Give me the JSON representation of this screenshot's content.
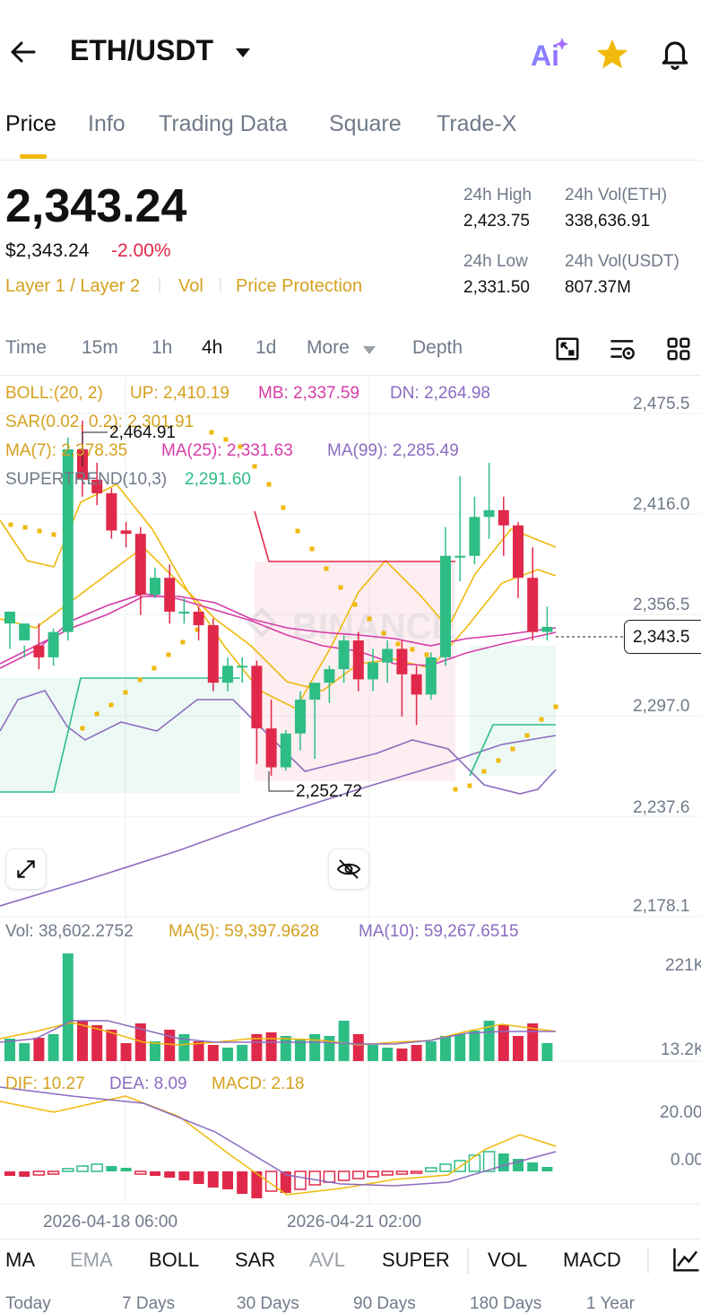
{
  "header": {
    "title": "ETH/USDT"
  },
  "tabs": [
    "Price",
    "Info",
    "Trading Data",
    "Square",
    "Trade-X"
  ],
  "price": {
    "last": "2,343.24",
    "fiat": "$2,343.24",
    "change": "-2.00%",
    "tags": [
      "Layer 1 / Layer 2",
      "Vol",
      "Price Protection"
    ]
  },
  "stats": {
    "high_label": "24h High",
    "high": "2,423.75",
    "vol_eth_label": "24h Vol(ETH)",
    "vol_eth": "338,636.91",
    "low_label": "24h Low",
    "low": "2,331.50",
    "vol_usdt_label": "24h Vol(USDT)",
    "vol_usdt": "807.37M"
  },
  "timeframes": [
    "Time",
    "15m",
    "1h",
    "4h",
    "1d",
    "More",
    "Depth"
  ],
  "active_timeframe": "4h",
  "legend": {
    "boll": "BOLL:(20, 2)",
    "up": "UP: 2,410.19",
    "mb": "MB: 2,337.59",
    "dn": "DN: 2,264.98",
    "sar": "SAR(0.02, 0.2): 2,301.91",
    "ma7": "MA(7): 2,378.35",
    "ma25": "MA(25): 2,331.63",
    "ma99": "MA(99): 2,285.49",
    "supertrend": "SUPERTREND(10,3)",
    "supertrend_val": "2,291.60"
  },
  "annotations": {
    "high": "2,464.91",
    "low": "2,252.72",
    "current": "2,343.5"
  },
  "vol_legend": {
    "vol": "Vol: 38,602.2752",
    "ma5": "MA(5): 59,397.9628",
    "ma10": "MA(10): 59,267.6515"
  },
  "macd_legend": {
    "dif": "DIF: 10.27",
    "dea": "DEA: 8.09",
    "macd": "MACD: 2.18"
  },
  "axis_labels": {
    "price": [
      "2,475.5",
      "2,416.0",
      "2,356.5",
      "2,297.0",
      "2,237.6",
      "2,178.1"
    ],
    "vol": [
      "221K",
      "13.2K"
    ],
    "macd": [
      "20.00",
      "0.00"
    ]
  },
  "dates": [
    "2026-04-18 06:00",
    "2026-04-21 02:00"
  ],
  "indicators": [
    "MA",
    "EMA",
    "BOLL",
    "SAR",
    "AVL",
    "SUPER",
    "VOL",
    "MACD"
  ],
  "ranges": [
    "Today",
    "7 Days",
    "30 Days",
    "90 Days",
    "180 Days",
    "1 Year"
  ],
  "watermark": "BINANCE",
  "colors": {
    "up": "#2ebd85",
    "down": "#e0294a",
    "accent": "#f0b90b",
    "ma": "#f0b90b",
    "ma25": "#d63ca6",
    "ma99": "#8b6cc0",
    "supertrend": "#2ebd85"
  },
  "chart_data": {
    "type": "candlestick",
    "candles_ohlc": [
      [
        2345,
        2352,
        2330,
        2352
      ],
      [
        2335,
        2345,
        2325,
        2332
      ],
      [
        2332,
        2325,
        2318,
        2345
      ],
      [
        2325,
        2340,
        2320,
        2342
      ],
      [
        2340,
        2448,
        2335,
        2455
      ],
      [
        2448,
        2430,
        2420,
        2465
      ],
      [
        2430,
        2422,
        2415,
        2440
      ],
      [
        2422,
        2400,
        2395,
        2425
      ],
      [
        2400,
        2398,
        2390,
        2405
      ],
      [
        2398,
        2362,
        2350,
        2402
      ],
      [
        2362,
        2372,
        2360,
        2378
      ],
      [
        2372,
        2352,
        2345,
        2380
      ],
      [
        2352,
        2352,
        2345,
        2360
      ],
      [
        2352,
        2344,
        2335,
        2355
      ],
      [
        2344,
        2310,
        2305,
        2348
      ],
      [
        2310,
        2320,
        2305,
        2325
      ],
      [
        2320,
        2320,
        2310,
        2325
      ],
      [
        2320,
        2283,
        2262,
        2323
      ],
      [
        2283,
        2260,
        2255,
        2300
      ],
      [
        2260,
        2280,
        2258,
        2282
      ],
      [
        2280,
        2300,
        2270,
        2305
      ],
      [
        2300,
        2310,
        2265,
        2310
      ],
      [
        2310,
        2318,
        2298,
        2320
      ],
      [
        2318,
        2335,
        2310,
        2338
      ],
      [
        2335,
        2312,
        2305,
        2340
      ],
      [
        2312,
        2322,
        2305,
        2330
      ],
      [
        2322,
        2330,
        2310,
        2335
      ],
      [
        2330,
        2315,
        2290,
        2335
      ],
      [
        2315,
        2303,
        2285,
        2320
      ],
      [
        2303,
        2325,
        2300,
        2328
      ],
      [
        2325,
        2385,
        2320,
        2402
      ],
      [
        2385,
        2385,
        2370,
        2432
      ],
      [
        2385,
        2408,
        2380,
        2420
      ],
      [
        2408,
        2412,
        2395,
        2440
      ],
      [
        2412,
        2403,
        2385,
        2420
      ],
      [
        2403,
        2372,
        2360,
        2405
      ],
      [
        2372,
        2340,
        2335,
        2390
      ],
      [
        2340,
        2343,
        2335,
        2355
      ]
    ],
    "ylim": [
      2178.1,
      2475.5
    ]
  }
}
